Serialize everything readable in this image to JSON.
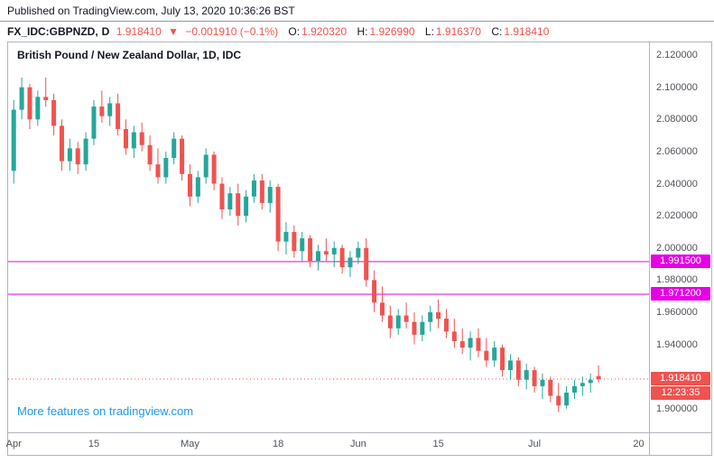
{
  "header": {
    "published": "Published on TradingView.com, July 13, 2020 10:36:26 BST"
  },
  "symbol_bar": {
    "symbol": "FX_IDC:GBPNZD,",
    "resolution": "D",
    "last_price": "1.918410",
    "direction": "▼",
    "change": "−0.001910 (−0.1%)",
    "o_label": "O:",
    "o": "1.920320",
    "h_label": "H:",
    "h": "1.926990",
    "l_label": "L:",
    "l": "1.916370",
    "c_label": "C:",
    "c": "1.918410"
  },
  "chart": {
    "legend": "British Pound / New Zealand Dollar, 1D, IDC",
    "promo": "More features on tradingview.com"
  },
  "chart_data": {
    "type": "candlestick",
    "title": "British Pound / New Zealand Dollar, 1D, IDC",
    "symbol": "FX_IDC:GBPNZD",
    "interval": "1D",
    "ylim": [
      1.8853,
      2.1279
    ],
    "slots": 80,
    "grid": false,
    "colors": {
      "up": "#26a69a",
      "down": "#ef5350",
      "level": "#e500e5",
      "last": "#ef5350"
    },
    "price_ticks": [
      "2.120000",
      "2.100000",
      "2.080000",
      "2.060000",
      "2.040000",
      "2.020000",
      "2.000000",
      "1.980000",
      "1.960000",
      "1.940000",
      "1.920000",
      "1.900000"
    ],
    "time_labels": [
      {
        "label": "Apr",
        "slot": 0
      },
      {
        "label": "15",
        "slot": 10
      },
      {
        "label": "May",
        "slot": 22
      },
      {
        "label": "18",
        "slot": 33
      },
      {
        "label": "Jun",
        "slot": 43
      },
      {
        "label": "15",
        "slot": 53
      },
      {
        "label": "Jul",
        "slot": 65
      },
      {
        "label": "20",
        "slot": 78
      }
    ],
    "levels": [
      {
        "price": 1.9915,
        "label": "1.991500"
      },
      {
        "price": 1.9712,
        "label": "1.971200"
      }
    ],
    "last": {
      "price": 1.91841,
      "label": "1.918410",
      "countdown": "12:23:35"
    },
    "candles": [
      [
        2.048,
        2.092,
        2.04,
        2.086
      ],
      [
        2.086,
        2.106,
        2.08,
        2.1
      ],
      [
        2.1,
        2.102,
        2.074,
        2.08
      ],
      [
        2.08,
        2.098,
        2.076,
        2.094
      ],
      [
        2.094,
        2.106,
        2.088,
        2.092
      ],
      [
        2.092,
        2.096,
        2.07,
        2.076
      ],
      [
        2.076,
        2.08,
        2.048,
        2.054
      ],
      [
        2.054,
        2.068,
        2.048,
        2.062
      ],
      [
        2.062,
        2.066,
        2.046,
        2.052
      ],
      [
        2.052,
        2.072,
        2.048,
        2.068
      ],
      [
        2.068,
        2.092,
        2.064,
        2.088
      ],
      [
        2.088,
        2.098,
        2.078,
        2.082
      ],
      [
        2.082,
        2.094,
        2.076,
        2.09
      ],
      [
        2.09,
        2.096,
        2.07,
        2.074
      ],
      [
        2.074,
        2.08,
        2.058,
        2.062
      ],
      [
        2.062,
        2.076,
        2.056,
        2.072
      ],
      [
        2.072,
        2.078,
        2.06,
        2.064
      ],
      [
        2.064,
        2.07,
        2.048,
        2.052
      ],
      [
        2.052,
        2.062,
        2.04,
        2.044
      ],
      [
        2.044,
        2.06,
        2.04,
        2.056
      ],
      [
        2.056,
        2.072,
        2.052,
        2.068
      ],
      [
        2.068,
        2.07,
        2.042,
        2.046
      ],
      [
        2.046,
        2.052,
        2.026,
        2.032
      ],
      [
        2.032,
        2.048,
        2.028,
        2.044
      ],
      [
        2.044,
        2.062,
        2.04,
        2.058
      ],
      [
        2.058,
        2.06,
        2.036,
        2.04
      ],
      [
        2.04,
        2.044,
        2.018,
        2.024
      ],
      [
        2.024,
        2.038,
        2.02,
        2.034
      ],
      [
        2.034,
        2.04,
        2.014,
        2.02
      ],
      [
        2.02,
        2.036,
        2.016,
        2.032
      ],
      [
        2.032,
        2.046,
        2.028,
        2.042
      ],
      [
        2.042,
        2.046,
        2.024,
        2.028
      ],
      [
        2.028,
        2.042,
        2.022,
        2.038
      ],
      [
        2.038,
        2.04,
        1.998,
        2.004
      ],
      [
        2.004,
        2.016,
        1.996,
        2.01
      ],
      [
        2.01,
        2.014,
        1.994,
        1.998
      ],
      [
        1.998,
        2.01,
        1.992,
        2.006
      ],
      [
        2.006,
        2.008,
        1.988,
        1.992
      ],
      [
        1.992,
        2.002,
        1.986,
        1.998
      ],
      [
        1.998,
        2.006,
        1.992,
        1.996
      ],
      [
        1.996,
        2.004,
        1.988,
        2.0
      ],
      [
        2.0,
        2.002,
        1.984,
        1.988
      ],
      [
        1.988,
        1.998,
        1.982,
        1.994
      ],
      [
        1.994,
        2.004,
        1.99,
        2.0
      ],
      [
        2.0,
        2.006,
        1.976,
        1.98
      ],
      [
        1.98,
        1.986,
        1.96,
        1.966
      ],
      [
        1.966,
        1.976,
        1.954,
        1.958
      ],
      [
        1.958,
        1.964,
        1.944,
        1.95
      ],
      [
        1.95,
        1.962,
        1.946,
        1.958
      ],
      [
        1.958,
        1.966,
        1.95,
        1.954
      ],
      [
        1.954,
        1.96,
        1.94,
        1.946
      ],
      [
        1.946,
        1.958,
        1.942,
        1.954
      ],
      [
        1.954,
        1.964,
        1.948,
        1.96
      ],
      [
        1.96,
        1.968,
        1.95,
        1.956
      ],
      [
        1.956,
        1.962,
        1.944,
        1.948
      ],
      [
        1.948,
        1.956,
        1.938,
        1.942
      ],
      [
        1.942,
        1.95,
        1.934,
        1.938
      ],
      [
        1.938,
        1.948,
        1.93,
        1.944
      ],
      [
        1.944,
        1.95,
        1.932,
        1.936
      ],
      [
        1.936,
        1.944,
        1.926,
        1.93
      ],
      [
        1.93,
        1.942,
        1.926,
        1.938
      ],
      [
        1.938,
        1.94,
        1.92,
        1.924
      ],
      [
        1.924,
        1.934,
        1.918,
        1.93
      ],
      [
        1.93,
        1.932,
        1.914,
        1.918
      ],
      [
        1.918,
        1.928,
        1.912,
        1.924
      ],
      [
        1.924,
        1.926,
        1.91,
        1.914
      ],
      [
        1.914,
        1.922,
        1.906,
        1.918
      ],
      [
        1.918,
        1.92,
        1.904,
        1.908
      ],
      [
        1.908,
        1.916,
        1.898,
        1.902
      ],
      [
        1.902,
        1.914,
        1.9,
        1.91
      ],
      [
        1.91,
        1.918,
        1.906,
        1.914
      ],
      [
        1.914,
        1.92,
        1.908,
        1.916
      ],
      [
        1.916,
        1.922,
        1.91,
        1.918
      ],
      [
        1.92032,
        1.92699,
        1.91637,
        1.91841
      ]
    ]
  }
}
